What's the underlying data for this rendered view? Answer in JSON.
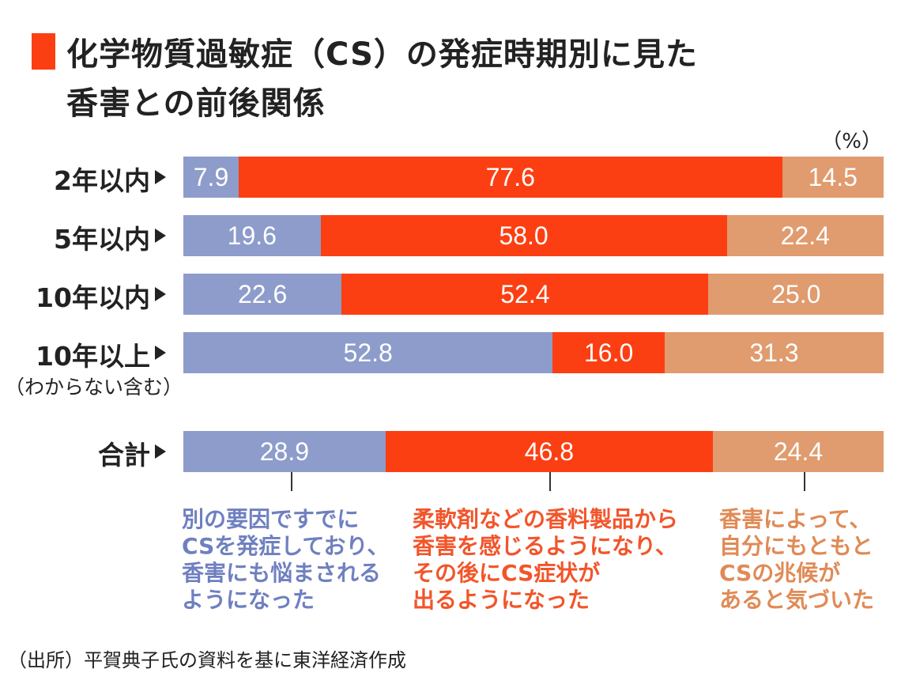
{
  "chart_data": {
    "type": "bar",
    "stacked": true,
    "orientation": "horizontal",
    "title": "化学物質過敏症（CS）の発症時期別に見た香害との前後関係",
    "title_lines": [
      "化学物質過敏症（CS）の発症時期別に見た",
      "香害との前後関係"
    ],
    "unit": "（%）",
    "categories": [
      "2年以内",
      "5年以内",
      "10年以内",
      "10年以上",
      "合計"
    ],
    "category_note": "（わからない含む）",
    "series": [
      {
        "name": "別の要因ですでにCSを発症しており、香害にも悩まされるようになった",
        "color": "#8d9ccb",
        "text_color": "#6f80c0",
        "values": [
          7.9,
          19.6,
          22.6,
          52.8,
          28.9
        ],
        "labels": [
          "7.9",
          "19.6",
          "22.6",
          "52.8",
          "28.9"
        ]
      },
      {
        "name": "柔軟剤などの香料製品から香害を感じるようになり、その後にCS症状が出るようになった",
        "color": "#fc3f12",
        "text_color": "#f2552a",
        "values": [
          77.6,
          58.0,
          52.4,
          16.0,
          46.8
        ],
        "labels": [
          "77.6",
          "58.0",
          "52.4",
          "16.0",
          "46.8"
        ]
      },
      {
        "name": "香害によって、自分にもともとCSの兆候があると気づいた",
        "color": "#e09b6e",
        "text_color": "#e08a55",
        "values": [
          14.5,
          22.4,
          25.0,
          31.3,
          24.4
        ],
        "labels": [
          "14.5",
          "22.4",
          "25.0",
          "31.3",
          "24.4"
        ]
      }
    ],
    "xlim": [
      0,
      100
    ],
    "legend": "bottom",
    "legend_lines": [
      [
        "別の要因ですでに",
        "CSを発症しており、",
        "香害にも悩まされる",
        "ようになった"
      ],
      [
        "柔軟剤などの香料製品から",
        "香害を感じるようになり、",
        "その後にCS症状が",
        "出るようになった"
      ],
      [
        "香害によって、",
        "自分にもともと",
        "CSの兆候が",
        "あると気づいた"
      ]
    ],
    "source": "（出所）平賀典子氏の資料を基に東洋経済作成"
  }
}
